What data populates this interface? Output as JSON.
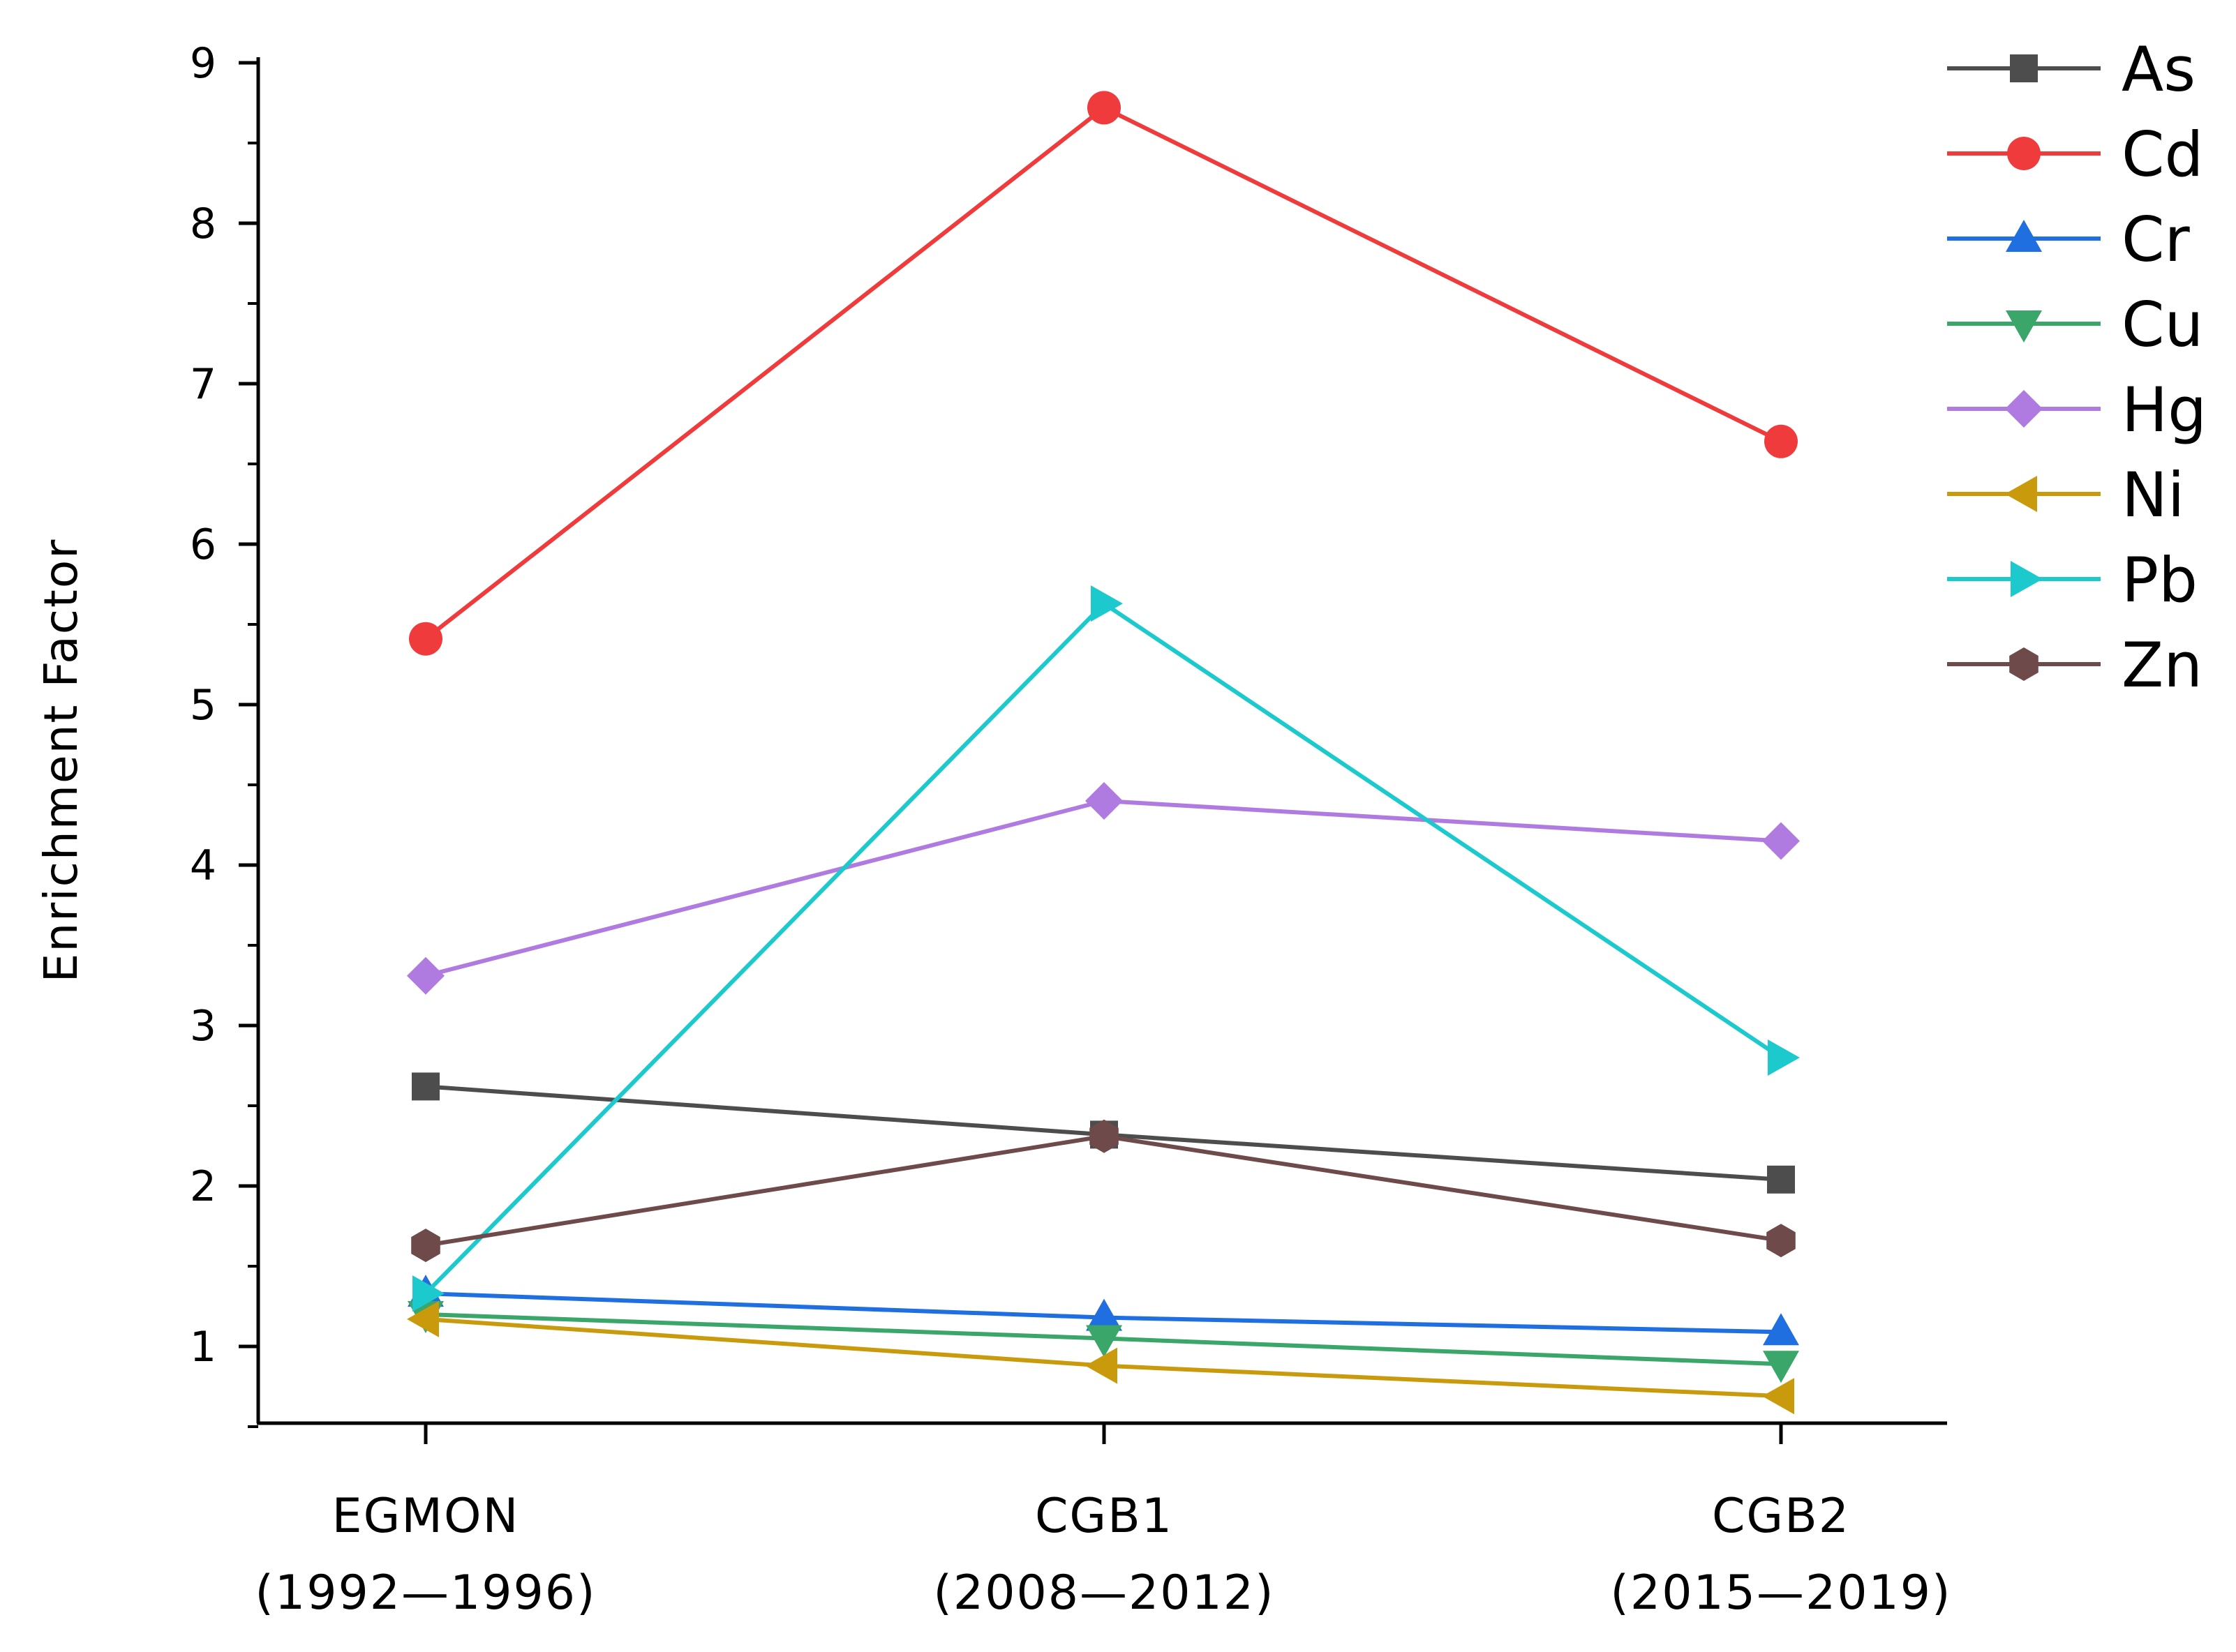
{
  "chart_data": {
    "type": "line",
    "title": "",
    "xlabel": "",
    "ylabel": "Enrichment Factor",
    "ylim": [
      0.5,
      9
    ],
    "yticks": [
      1,
      2,
      3,
      4,
      5,
      6,
      7,
      8,
      9
    ],
    "categories": [
      {
        "line1": "EGMON",
        "line2": "(1992—1996)"
      },
      {
        "line1": "CGB1",
        "line2": "(2008—2012)"
      },
      {
        "line1": "CGB2",
        "line2": "(2015—2019)"
      }
    ],
    "legend_position": "top-right",
    "series": [
      {
        "name": "As",
        "color": "#4d4d4d",
        "marker": "square",
        "values": [
          2.62,
          2.32,
          2.04
        ]
      },
      {
        "name": "Cd",
        "color": "#ef3b3b",
        "marker": "circle",
        "values": [
          5.41,
          8.72,
          6.64
        ]
      },
      {
        "name": "Cr",
        "color": "#1f6fe0",
        "marker": "triangle-up",
        "values": [
          1.33,
          1.18,
          1.09
        ]
      },
      {
        "name": "Cu",
        "color": "#3aa66a",
        "marker": "triangle-down",
        "values": [
          1.2,
          1.05,
          0.89
        ]
      },
      {
        "name": "Hg",
        "color": "#b07be0",
        "marker": "diamond",
        "values": [
          3.31,
          4.4,
          4.15
        ]
      },
      {
        "name": "Ni",
        "color": "#c99a0c",
        "marker": "triangle-left",
        "values": [
          1.17,
          0.88,
          0.69
        ]
      },
      {
        "name": "Pb",
        "color": "#1cc9cc",
        "marker": "triangle-right",
        "values": [
          1.33,
          5.63,
          2.8
        ]
      },
      {
        "name": "Zn",
        "color": "#6e4a4a",
        "marker": "hexagon",
        "values": [
          1.63,
          2.31,
          1.66
        ]
      }
    ]
  }
}
